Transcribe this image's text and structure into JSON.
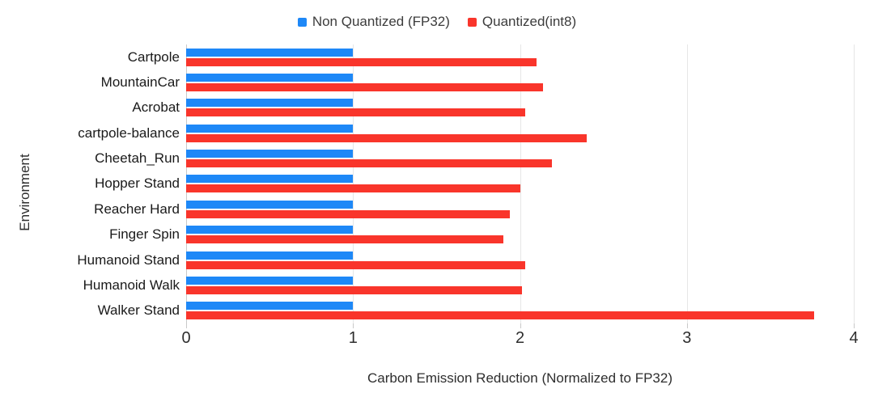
{
  "chart_data": {
    "type": "bar",
    "orientation": "horizontal",
    "xlabel": "Carbon Emission Reduction (Normalized to FP32)",
    "ylabel": "Environment",
    "xlim": [
      0,
      4
    ],
    "xticks": [
      0,
      1,
      2,
      3,
      4
    ],
    "grid": true,
    "legend_position": "top-center",
    "background_color": "#ffffff",
    "categories": [
      "Cartpole",
      "MountainCar",
      "Acrobat",
      "cartpole-balance",
      "Cheetah_Run",
      "Hopper Stand",
      "Reacher Hard",
      "Finger Spin",
      "Humanoid Stand",
      "Humanoid Walk",
      "Walker Stand"
    ],
    "series": [
      {
        "name": "Non Quantized (FP32)",
        "color": "#1E88F7",
        "values": [
          1,
          1,
          1,
          1,
          1,
          1,
          1,
          1,
          1,
          1,
          1
        ]
      },
      {
        "name": "Quantized(int8)",
        "color": "#F9352B",
        "values": [
          2.1,
          2.14,
          2.03,
          2.4,
          2.19,
          2.0,
          1.94,
          1.9,
          2.03,
          2.01,
          3.76
        ]
      }
    ]
  }
}
